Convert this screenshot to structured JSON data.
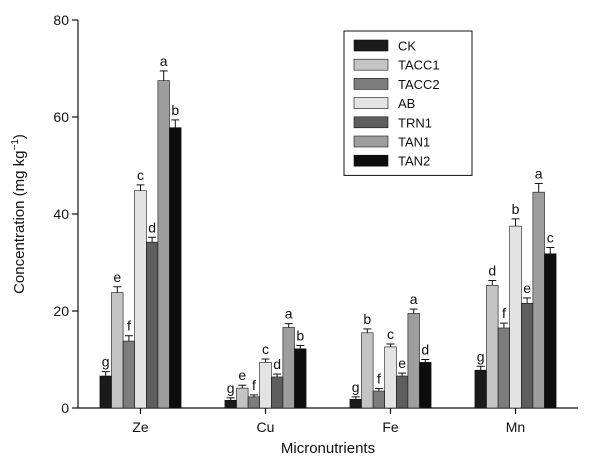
{
  "chart_data": {
    "type": "bar",
    "xlabel": "Micronutrients",
    "ylabel_main": "Concentration (mg kg",
    "ylabel_sup": "−1",
    "ylabel_end": ")",
    "ylim": [
      0,
      80
    ],
    "yticks": [
      "0",
      "20",
      "40",
      "60",
      "80"
    ],
    "categories": [
      "Ze",
      "Cu",
      "Fe",
      "Mn"
    ],
    "legend_position": "top-right",
    "series": [
      {
        "name": "CK",
        "color": "#1a1a1a",
        "values": [
          6.6,
          1.6,
          1.8,
          7.8
        ],
        "errors": [
          0.9,
          0.5,
          0.5,
          0.8
        ],
        "letters": [
          "g",
          "g",
          "g",
          "g"
        ]
      },
      {
        "name": "TACC1",
        "color": "#c4c4c4",
        "values": [
          23.8,
          4.1,
          15.5,
          25.3
        ],
        "errors": [
          1.2,
          0.6,
          0.8,
          1.0
        ],
        "letters": [
          "e",
          "e",
          "b",
          "d"
        ]
      },
      {
        "name": "TACC2",
        "color": "#7d7d7d",
        "values": [
          13.8,
          2.3,
          3.5,
          16.5
        ],
        "errors": [
          1.1,
          0.4,
          0.5,
          1.0
        ],
        "letters": [
          "f",
          "f",
          "f",
          "f"
        ]
      },
      {
        "name": "AB",
        "color": "#e3e3e3",
        "values": [
          44.8,
          9.4,
          12.6,
          37.5
        ],
        "errors": [
          1.2,
          0.7,
          0.6,
          1.5
        ],
        "letters": [
          "c",
          "c",
          "c",
          "b"
        ]
      },
      {
        "name": "TRN1",
        "color": "#5e5e5e",
        "values": [
          34.2,
          6.4,
          6.6,
          21.6
        ],
        "errors": [
          1.0,
          0.6,
          0.6,
          1.1
        ],
        "letters": [
          "d",
          "d",
          "e",
          "e"
        ]
      },
      {
        "name": "TAN1",
        "color": "#9e9e9e",
        "values": [
          67.5,
          16.6,
          19.5,
          44.5
        ],
        "errors": [
          2.0,
          0.8,
          0.9,
          1.8
        ],
        "letters": [
          "a",
          "a",
          "a",
          "a"
        ]
      },
      {
        "name": "TAN2",
        "color": "#0d0d0d",
        "values": [
          57.8,
          12.2,
          9.4,
          31.8
        ],
        "errors": [
          1.6,
          0.7,
          0.6,
          1.3
        ],
        "letters": [
          "b",
          "b",
          "d",
          "c"
        ]
      }
    ]
  }
}
